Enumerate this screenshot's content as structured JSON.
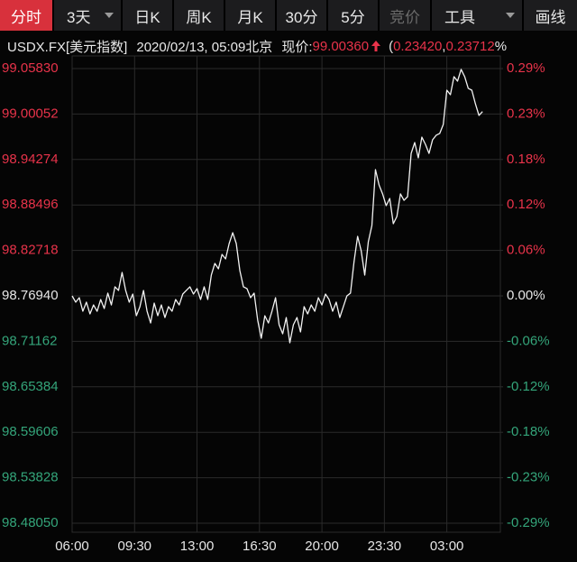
{
  "toolbar": {
    "tabs": [
      {
        "label": "分时",
        "active": true
      },
      {
        "label": "3天",
        "dropdown": true
      },
      {
        "label": "日K"
      },
      {
        "label": "周K"
      },
      {
        "label": "月K"
      },
      {
        "label": "30分"
      },
      {
        "label": "5分"
      },
      {
        "label": "竞价",
        "disabled": true
      },
      {
        "label": "工具",
        "dropdown": true
      },
      {
        "label": "画线"
      }
    ]
  },
  "info": {
    "symbol": "USDX.FX[美元指数]",
    "datetime": "2020/02/13, 05:09北京",
    "price_label": "现价:",
    "price": "99.00360",
    "paren": "(",
    "change": "0.23420",
    "comma": ", ",
    "change_pct": "0.23712",
    "percent_sign": "%"
  },
  "chart_data": {
    "type": "line",
    "color": "#f2f2f2",
    "up_color": "#e8334a",
    "down_color": "#34a57a",
    "flat_color": "#e6e6e6",
    "reference": 98.7694,
    "grid": true,
    "xlim": [
      0,
      24
    ],
    "xticks": [
      {
        "value": 0,
        "label": "06:00"
      },
      {
        "value": 3.5,
        "label": "09:30"
      },
      {
        "value": 7,
        "label": "13:00"
      },
      {
        "value": 10.5,
        "label": "16:30"
      },
      {
        "value": 14,
        "label": "20:00"
      },
      {
        "value": 17.5,
        "label": "23:30"
      },
      {
        "value": 21,
        "label": "03:00"
      }
    ],
    "ylim": [
      98.4805,
      99.0583
    ],
    "yticks": [
      {
        "value": 99.0583,
        "label": "99.05830"
      },
      {
        "value": 99.00052,
        "label": "99.00052"
      },
      {
        "value": 98.94274,
        "label": "98.94274"
      },
      {
        "value": 98.88496,
        "label": "98.88496"
      },
      {
        "value": 98.82718,
        "label": "98.82718"
      },
      {
        "value": 98.7694,
        "label": "98.76940"
      },
      {
        "value": 98.71162,
        "label": "98.71162"
      },
      {
        "value": 98.65384,
        "label": "98.65384"
      },
      {
        "value": 98.59606,
        "label": "98.59606"
      },
      {
        "value": 98.53828,
        "label": "98.53828"
      },
      {
        "value": 98.4805,
        "label": "98.48050"
      }
    ],
    "y2lim": [
      -0.2925,
      0.2925
    ],
    "y2ticks": [
      {
        "value": 0.2925,
        "label": "0.29%"
      },
      {
        "value": 0.234,
        "label": "0.23%"
      },
      {
        "value": 0.1755,
        "label": "0.18%"
      },
      {
        "value": 0.117,
        "label": "0.12%"
      },
      {
        "value": 0.0585,
        "label": "0.06%"
      },
      {
        "value": 0,
        "label": "0.00%"
      },
      {
        "value": -0.0585,
        "label": "-0.06%"
      },
      {
        "value": -0.117,
        "label": "-0.12%"
      },
      {
        "value": -0.1755,
        "label": "-0.18%"
      },
      {
        "value": -0.234,
        "label": "-0.23%"
      },
      {
        "value": -0.2925,
        "label": "-0.29%"
      }
    ],
    "x": [
      0,
      0.2,
      0.4,
      0.6,
      0.8,
      1,
      1.2,
      1.4,
      1.6,
      1.8,
      2,
      2.2,
      2.4,
      2.6,
      2.8,
      3,
      3.2,
      3.4,
      3.6,
      3.8,
      4,
      4.2,
      4.4,
      4.6,
      4.8,
      5,
      5.2,
      5.4,
      5.6,
      5.8,
      6,
      6.2,
      6.4,
      6.6,
      6.8,
      7,
      7.2,
      7.4,
      7.6,
      7.8,
      8,
      8.2,
      8.4,
      8.6,
      8.8,
      9,
      9.2,
      9.4,
      9.6,
      9.8,
      10,
      10.2,
      10.4,
      10.6,
      10.8,
      11,
      11.2,
      11.4,
      11.6,
      11.8,
      12,
      12.2,
      12.4,
      12.6,
      12.8,
      13,
      13.2,
      13.4,
      13.6,
      13.8,
      14,
      14.2,
      14.4,
      14.6,
      14.8,
      15,
      15.2,
      15.4,
      15.6,
      15.8,
      16,
      16.2,
      16.4,
      16.6,
      16.8,
      17,
      17.2,
      17.4,
      17.6,
      17.8,
      18,
      18.2,
      18.4,
      18.6,
      18.8,
      19,
      19.2,
      19.4,
      19.6,
      19.8,
      20,
      20.2,
      20.4,
      20.6,
      20.8,
      21,
      21.2,
      21.4,
      21.6,
      21.8,
      22,
      22.2,
      22.4,
      22.6,
      22.8,
      23
    ],
    "values": [
      98.7694,
      98.7614,
      98.7671,
      98.7499,
      98.7614,
      98.7465,
      98.7579,
      98.7499,
      98.7648,
      98.7534,
      98.7729,
      98.7579,
      98.7809,
      98.7763,
      98.7992,
      98.7763,
      98.7614,
      98.7717,
      98.7442,
      98.7557,
      98.7763,
      98.7499,
      98.735,
      98.7602,
      98.7442,
      98.7579,
      98.7419,
      98.7557,
      98.7499,
      98.7648,
      98.7579,
      98.7717,
      98.7763,
      98.7809,
      98.7717,
      98.7786,
      98.7648,
      98.7809,
      98.7648,
      98.7958,
      98.8107,
      98.8038,
      98.8221,
      98.8164,
      98.8359,
      98.8497,
      98.8359,
      98.8015,
      98.7809,
      98.7786,
      98.7671,
      98.7729,
      98.7385,
      98.7155,
      98.7442,
      98.735,
      98.7499,
      98.7671,
      98.7327,
      98.7213,
      98.7419,
      98.7098,
      98.7327,
      98.7419,
      98.7236,
      98.7557,
      98.7465,
      98.7579,
      98.7499,
      98.7671,
      98.7579,
      98.7717,
      98.7648,
      98.7499,
      98.7614,
      98.7419,
      98.7557,
      98.7694,
      98.7729,
      98.813,
      98.8451,
      98.8267,
      98.7958,
      98.8382,
      98.8588,
      98.9299,
      98.9104,
      98.899,
      98.8841,
      98.8932,
      98.8611,
      98.8703,
      98.899,
      98.8909,
      98.8955,
      98.9505,
      98.9643,
      98.9448,
      98.9712,
      98.962,
      98.9505,
      98.9677,
      98.9735,
      98.9758,
      98.9872,
      99.0308,
      99.0251,
      99.048,
      99.0423,
      99.0572,
      99.048,
      99.0331,
      99.0308,
      99.0136,
      98.9987,
      99.0036
    ]
  }
}
